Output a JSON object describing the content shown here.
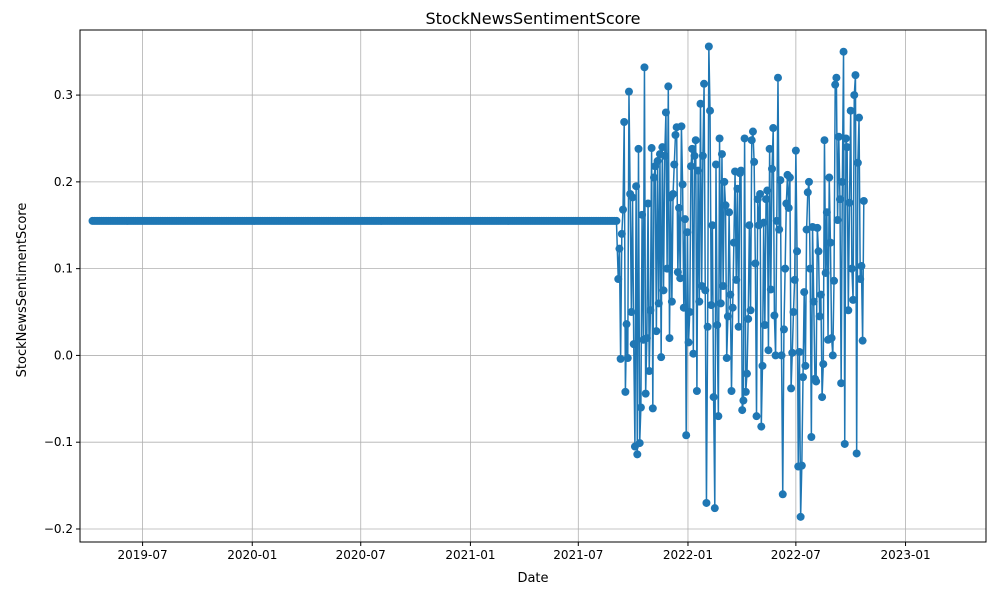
{
  "chart_data": {
    "type": "line",
    "title": "StockNewsSentimentScore",
    "xlabel": "Date",
    "ylabel": "StockNewsSentimentScore",
    "grid": true,
    "marker": "circle",
    "series_color": "#1f77b4",
    "xlim": [
      "2019-03-18",
      "2023-05-16"
    ],
    "ylim": [
      -0.215,
      0.375
    ],
    "x_ticks": [
      "2019-07",
      "2020-01",
      "2020-07",
      "2021-01",
      "2021-07",
      "2022-01",
      "2022-07",
      "2023-01"
    ],
    "y_ticks": [
      "−0.2",
      "−0.1",
      "0.0",
      "0.1",
      "0.2",
      "0.3"
    ],
    "y_tick_values": [
      -0.2,
      -0.1,
      0.0,
      0.1,
      0.2,
      0.3
    ],
    "series": [
      {
        "flat_segment": {
          "start": "2019-04-08",
          "end": "2021-09-03",
          "value": 0.155
        },
        "points": [
          [
            "2021-09-06",
            0.088
          ],
          [
            "2021-09-08",
            0.123
          ],
          [
            "2021-09-10",
            -0.004
          ],
          [
            "2021-09-12",
            0.14
          ],
          [
            "2021-09-14",
            0.168
          ],
          [
            "2021-09-16",
            0.269
          ],
          [
            "2021-09-18",
            -0.042
          ],
          [
            "2021-09-20",
            0.036
          ],
          [
            "2021-09-22",
            -0.003
          ],
          [
            "2021-09-24",
            0.304
          ],
          [
            "2021-09-26",
            0.186
          ],
          [
            "2021-09-28",
            0.05
          ],
          [
            "2021-09-30",
            0.182
          ],
          [
            "2021-10-02",
            0.013
          ],
          [
            "2021-10-04",
            -0.105
          ],
          [
            "2021-10-06",
            0.195
          ],
          [
            "2021-10-08",
            -0.114
          ],
          [
            "2021-10-10",
            0.238
          ],
          [
            "2021-10-12",
            -0.101
          ],
          [
            "2021-10-14",
            -0.06
          ],
          [
            "2021-10-16",
            0.162
          ],
          [
            "2021-10-18",
            0.018
          ],
          [
            "2021-10-20",
            0.332
          ],
          [
            "2021-10-22",
            -0.044
          ],
          [
            "2021-10-24",
            0.02
          ],
          [
            "2021-10-26",
            0.175
          ],
          [
            "2021-10-28",
            -0.018
          ],
          [
            "2021-10-30",
            0.052
          ],
          [
            "2021-11-01",
            0.239
          ],
          [
            "2021-11-03",
            -0.061
          ],
          [
            "2021-11-05",
            0.205
          ],
          [
            "2021-11-07",
            0.218
          ],
          [
            "2021-11-09",
            0.028
          ],
          [
            "2021-11-11",
            0.224
          ],
          [
            "2021-11-13",
            0.06
          ],
          [
            "2021-11-15",
            0.232
          ],
          [
            "2021-11-17",
            -0.002
          ],
          [
            "2021-11-19",
            0.24
          ],
          [
            "2021-11-21",
            0.075
          ],
          [
            "2021-11-23",
            0.23
          ],
          [
            "2021-11-25",
            0.28
          ],
          [
            "2021-11-27",
            0.1
          ],
          [
            "2021-11-29",
            0.31
          ],
          [
            "2021-12-01",
            0.02
          ],
          [
            "2021-12-03",
            0.182
          ],
          [
            "2021-12-05",
            0.062
          ],
          [
            "2021-12-07",
            0.186
          ],
          [
            "2021-12-09",
            0.22
          ],
          [
            "2021-12-11",
            0.254
          ],
          [
            "2021-12-13",
            0.263
          ],
          [
            "2021-12-15",
            0.096
          ],
          [
            "2021-12-17",
            0.17
          ],
          [
            "2021-12-19",
            0.089
          ],
          [
            "2021-12-21",
            0.264
          ],
          [
            "2021-12-23",
            0.197
          ],
          [
            "2021-12-25",
            0.055
          ],
          [
            "2021-12-27",
            0.157
          ],
          [
            "2021-12-29",
            -0.092
          ],
          [
            "2021-12-31",
            0.142
          ],
          [
            "2022-01-02",
            0.015
          ],
          [
            "2022-01-04",
            0.05
          ],
          [
            "2022-01-06",
            0.218
          ],
          [
            "2022-01-08",
            0.238
          ],
          [
            "2022-01-10",
            0.002
          ],
          [
            "2022-01-12",
            0.23
          ],
          [
            "2022-01-14",
            0.248
          ],
          [
            "2022-01-16",
            -0.041
          ],
          [
            "2022-01-18",
            0.213
          ],
          [
            "2022-01-20",
            0.062
          ],
          [
            "2022-01-22",
            0.29
          ],
          [
            "2022-01-24",
            0.08
          ],
          [
            "2022-01-26",
            0.23
          ],
          [
            "2022-01-28",
            0.313
          ],
          [
            "2022-01-30",
            0.075
          ],
          [
            "2022-02-01",
            -0.17
          ],
          [
            "2022-02-03",
            0.033
          ],
          [
            "2022-02-05",
            0.356
          ],
          [
            "2022-02-07",
            0.282
          ],
          [
            "2022-02-09",
            0.058
          ],
          [
            "2022-02-11",
            0.15
          ],
          [
            "2022-02-13",
            -0.048
          ],
          [
            "2022-02-15",
            -0.176
          ],
          [
            "2022-02-17",
            0.22
          ],
          [
            "2022-02-19",
            0.035
          ],
          [
            "2022-02-21",
            -0.07
          ],
          [
            "2022-02-23",
            0.25
          ],
          [
            "2022-02-25",
            0.06
          ],
          [
            "2022-02-27",
            0.232
          ],
          [
            "2022-03-01",
            0.08
          ],
          [
            "2022-03-03",
            0.2
          ],
          [
            "2022-03-05",
            0.173
          ],
          [
            "2022-03-07",
            -0.003
          ],
          [
            "2022-03-09",
            0.045
          ],
          [
            "2022-03-11",
            0.165
          ],
          [
            "2022-03-13",
            0.07
          ],
          [
            "2022-03-15",
            -0.041
          ],
          [
            "2022-03-17",
            0.055
          ],
          [
            "2022-03-19",
            0.13
          ],
          [
            "2022-03-21",
            0.212
          ],
          [
            "2022-03-23",
            0.087
          ],
          [
            "2022-03-25",
            0.192
          ],
          [
            "2022-03-27",
            0.033
          ],
          [
            "2022-03-29",
            0.21
          ],
          [
            "2022-03-31",
            0.213
          ],
          [
            "2022-04-02",
            -0.063
          ],
          [
            "2022-04-04",
            -0.052
          ],
          [
            "2022-04-06",
            0.25
          ],
          [
            "2022-04-08",
            -0.042
          ],
          [
            "2022-04-10",
            -0.021
          ],
          [
            "2022-04-12",
            0.042
          ],
          [
            "2022-04-14",
            0.15
          ],
          [
            "2022-04-16",
            0.052
          ],
          [
            "2022-04-18",
            0.248
          ],
          [
            "2022-04-20",
            0.258
          ],
          [
            "2022-04-22",
            0.223
          ],
          [
            "2022-04-24",
            0.106
          ],
          [
            "2022-04-26",
            -0.07
          ],
          [
            "2022-04-28",
            0.18
          ],
          [
            "2022-04-30",
            0.15
          ],
          [
            "2022-05-02",
            0.186
          ],
          [
            "2022-05-04",
            -0.082
          ],
          [
            "2022-05-06",
            -0.012
          ],
          [
            "2022-05-08",
            0.153
          ],
          [
            "2022-05-10",
            0.035
          ],
          [
            "2022-05-12",
            0.18
          ],
          [
            "2022-05-14",
            0.19
          ],
          [
            "2022-05-16",
            0.006
          ],
          [
            "2022-05-18",
            0.238
          ],
          [
            "2022-05-20",
            0.076
          ],
          [
            "2022-05-22",
            0.215
          ],
          [
            "2022-05-24",
            0.262
          ],
          [
            "2022-05-26",
            0.046
          ],
          [
            "2022-05-28",
            0.0
          ],
          [
            "2022-05-30",
            0.155
          ],
          [
            "2022-06-01",
            0.32
          ],
          [
            "2022-06-03",
            0.145
          ],
          [
            "2022-06-05",
            0.202
          ],
          [
            "2022-06-07",
            0.0
          ],
          [
            "2022-06-09",
            -0.16
          ],
          [
            "2022-06-11",
            0.03
          ],
          [
            "2022-06-13",
            0.1
          ],
          [
            "2022-06-15",
            0.175
          ],
          [
            "2022-06-17",
            0.208
          ],
          [
            "2022-06-19",
            0.17
          ],
          [
            "2022-06-21",
            0.205
          ],
          [
            "2022-06-23",
            -0.038
          ],
          [
            "2022-06-25",
            0.003
          ],
          [
            "2022-06-27",
            0.05
          ],
          [
            "2022-06-29",
            0.087
          ],
          [
            "2022-07-01",
            0.236
          ],
          [
            "2022-07-03",
            0.12
          ],
          [
            "2022-07-05",
            -0.128
          ],
          [
            "2022-07-07",
            0.004
          ],
          [
            "2022-07-09",
            -0.186
          ],
          [
            "2022-07-11",
            -0.127
          ],
          [
            "2022-07-13",
            -0.025
          ],
          [
            "2022-07-15",
            0.073
          ],
          [
            "2022-07-17",
            -0.012
          ],
          [
            "2022-07-19",
            0.145
          ],
          [
            "2022-07-21",
            0.188
          ],
          [
            "2022-07-23",
            0.2
          ],
          [
            "2022-07-25",
            0.1
          ],
          [
            "2022-07-27",
            -0.094
          ],
          [
            "2022-07-29",
            0.148
          ],
          [
            "2022-07-31",
            0.062
          ],
          [
            "2022-08-02",
            -0.027
          ],
          [
            "2022-08-04",
            -0.03
          ],
          [
            "2022-08-06",
            0.147
          ],
          [
            "2022-08-08",
            0.12
          ],
          [
            "2022-08-10",
            0.045
          ],
          [
            "2022-08-12",
            0.07
          ],
          [
            "2022-08-14",
            -0.048
          ],
          [
            "2022-08-16",
            -0.01
          ],
          [
            "2022-08-18",
            0.248
          ],
          [
            "2022-08-20",
            0.095
          ],
          [
            "2022-08-22",
            0.165
          ],
          [
            "2022-08-24",
            0.018
          ],
          [
            "2022-08-26",
            0.205
          ],
          [
            "2022-08-28",
            0.13
          ],
          [
            "2022-08-30",
            0.02
          ],
          [
            "2022-09-01",
            0.0
          ],
          [
            "2022-09-03",
            0.086
          ],
          [
            "2022-09-05",
            0.312
          ],
          [
            "2022-09-07",
            0.32
          ],
          [
            "2022-09-09",
            0.156
          ],
          [
            "2022-09-11",
            0.252
          ],
          [
            "2022-09-13",
            0.18
          ],
          [
            "2022-09-15",
            -0.032
          ],
          [
            "2022-09-17",
            0.2
          ],
          [
            "2022-09-19",
            0.35
          ],
          [
            "2022-09-21",
            -0.102
          ],
          [
            "2022-09-23",
            0.25
          ],
          [
            "2022-09-25",
            0.24
          ],
          [
            "2022-09-27",
            0.052
          ],
          [
            "2022-09-29",
            0.176
          ],
          [
            "2022-10-01",
            0.282
          ],
          [
            "2022-10-03",
            0.1
          ],
          [
            "2022-10-05",
            0.064
          ],
          [
            "2022-10-07",
            0.3
          ],
          [
            "2022-10-09",
            0.323
          ],
          [
            "2022-10-11",
            -0.113
          ],
          [
            "2022-10-13",
            0.222
          ],
          [
            "2022-10-15",
            0.274
          ],
          [
            "2022-10-17",
            0.088
          ],
          [
            "2022-10-19",
            0.103
          ],
          [
            "2022-10-21",
            0.017
          ],
          [
            "2022-10-23",
            0.178
          ]
        ]
      }
    ]
  }
}
